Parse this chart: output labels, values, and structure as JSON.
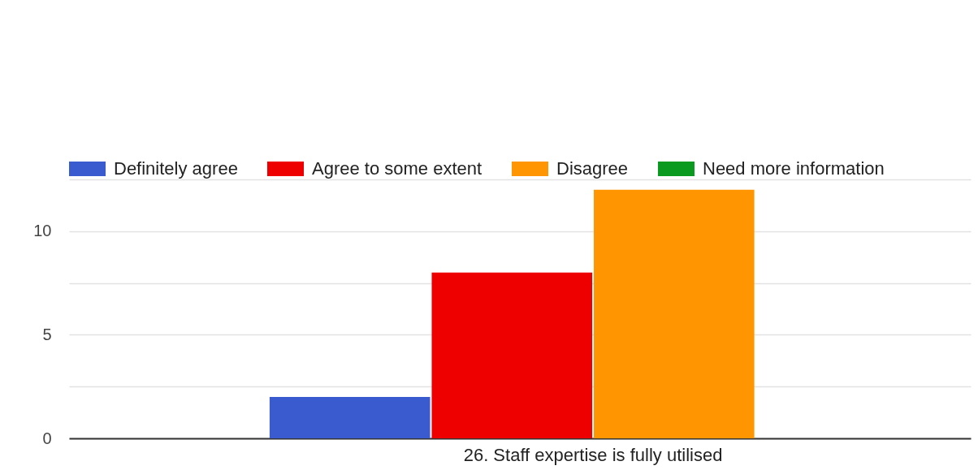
{
  "chart_data": {
    "type": "bar",
    "categories": [
      "26. Staff expertise is fully utilised"
    ],
    "series": [
      {
        "name": "Definitely agree",
        "color": "#3a5bcf",
        "values": [
          2
        ]
      },
      {
        "name": "Agree to some extent",
        "color": "#ee0000",
        "values": [
          8
        ]
      },
      {
        "name": "Disagree",
        "color": "#ff9500",
        "values": [
          12
        ]
      },
      {
        "name": "Need more information",
        "color": "#0a9a20",
        "values": [
          0
        ]
      }
    ],
    "ylim": [
      0,
      12.5
    ],
    "yticks": [
      0,
      {
        "value": 2.5,
        "label": null
      },
      5,
      {
        "value": 7.5,
        "label": null
      },
      10,
      {
        "value": 12.5,
        "label": null
      }
    ],
    "grid": "y",
    "legend": "top"
  }
}
